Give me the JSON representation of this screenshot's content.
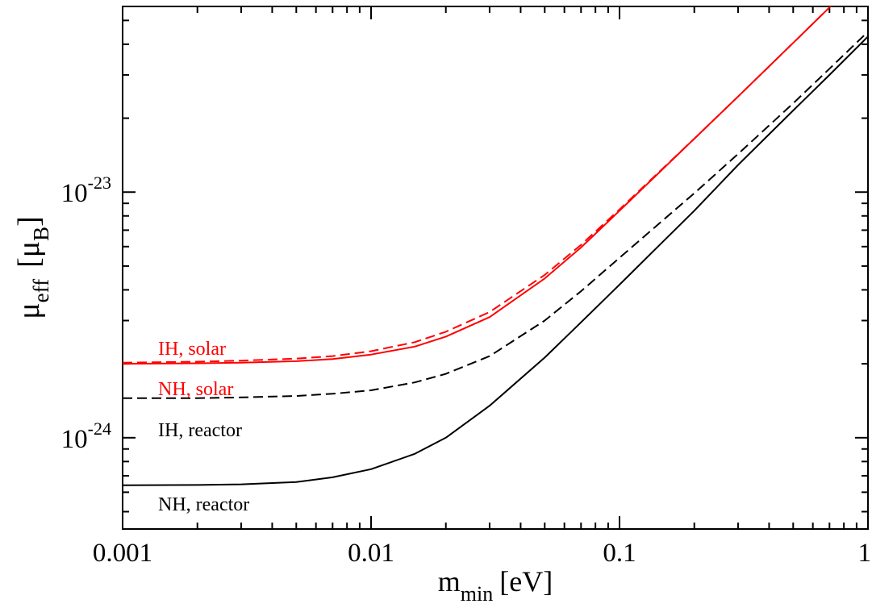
{
  "chart_data": {
    "type": "line",
    "x_scale": "log",
    "y_scale": "log",
    "xlim": [
      0.001,
      1
    ],
    "ylim": [
      4.25e-25,
      5.7e-23
    ],
    "grid": false,
    "legend": "inline-labels",
    "xlabel": {
      "main": "m",
      "sub": "min",
      "unit": "[eV]"
    },
    "ylabel": {
      "main": "μ",
      "sub": "eff",
      "unit_open": "[μ",
      "unit_sub": "B",
      "unit_close": "]"
    },
    "x_ticks": [
      {
        "value": 0.001,
        "label": "0.001"
      },
      {
        "value": 0.01,
        "label": "0.01"
      },
      {
        "value": 0.1,
        "label": "0.1"
      },
      {
        "value": 1,
        "label": "1"
      }
    ],
    "y_ticks": [
      {
        "value": 1e-24,
        "base": "10",
        "exp": "-24"
      },
      {
        "value": 1e-23,
        "base": "10",
        "exp": "-23"
      }
    ],
    "series": [
      {
        "name": "IH, solar",
        "color": "#ff0000",
        "dash": "dashed",
        "x": [
          0.001,
          0.002,
          0.003,
          0.005,
          0.007,
          0.01,
          0.015,
          0.02,
          0.03,
          0.05,
          0.07,
          0.1,
          0.2,
          0.3,
          0.5,
          0.7,
          1.0
        ],
        "y": [
          2.02e-24,
          2.04e-24,
          2.06e-24,
          2.1e-24,
          2.15e-24,
          2.25e-24,
          2.45e-24,
          2.7e-24,
          3.25e-24,
          4.6e-24,
          6.1e-24,
          8.5e-24,
          1.65e-23,
          2.45e-23,
          4.05e-23,
          5.65e-23,
          8.05e-23
        ]
      },
      {
        "name": "NH, solar",
        "color": "#ff0000",
        "dash": "solid",
        "x": [
          0.001,
          0.002,
          0.003,
          0.005,
          0.007,
          0.01,
          0.015,
          0.02,
          0.03,
          0.05,
          0.07,
          0.1,
          0.2,
          0.3,
          0.5,
          0.7,
          1.0
        ],
        "y": [
          2e-24,
          2.01e-24,
          2.02e-24,
          2.05e-24,
          2.09e-24,
          2.18e-24,
          2.35e-24,
          2.58e-24,
          3.1e-24,
          4.45e-24,
          5.95e-24,
          8.4e-24,
          1.65e-23,
          2.45e-23,
          4.05e-23,
          5.65e-23,
          8.05e-23
        ]
      },
      {
        "name": "IH, reactor",
        "color": "#000000",
        "dash": "dashed",
        "x": [
          0.001,
          0.002,
          0.003,
          0.005,
          0.007,
          0.01,
          0.015,
          0.02,
          0.03,
          0.05,
          0.07,
          0.1,
          0.15,
          0.2,
          0.3,
          0.5,
          0.7,
          1.0
        ],
        "y": [
          1.45e-24,
          1.45e-24,
          1.46e-24,
          1.48e-24,
          1.51e-24,
          1.56e-24,
          1.68e-24,
          1.82e-24,
          2.15e-24,
          3e-24,
          3.95e-24,
          5.4e-24,
          7.7e-24,
          9.9e-24,
          1.43e-23,
          2.3e-23,
          3.18e-23,
          4.5e-23
        ]
      },
      {
        "name": "NH, reactor",
        "color": "#000000",
        "dash": "solid",
        "x": [
          0.001,
          0.002,
          0.003,
          0.005,
          0.007,
          0.01,
          0.015,
          0.02,
          0.03,
          0.05,
          0.07,
          0.1,
          0.15,
          0.2,
          0.3,
          0.5,
          0.7,
          1.0
        ],
        "y": [
          6.4e-25,
          6.42e-25,
          6.46e-25,
          6.6e-25,
          6.9e-25,
          7.45e-25,
          8.6e-25,
          1e-24,
          1.35e-24,
          2.12e-24,
          2.95e-24,
          4.2e-24,
          6.3e-24,
          8.4e-24,
          1.29e-23,
          2.15e-23,
          3e-23,
          4.3e-23
        ]
      }
    ]
  }
}
